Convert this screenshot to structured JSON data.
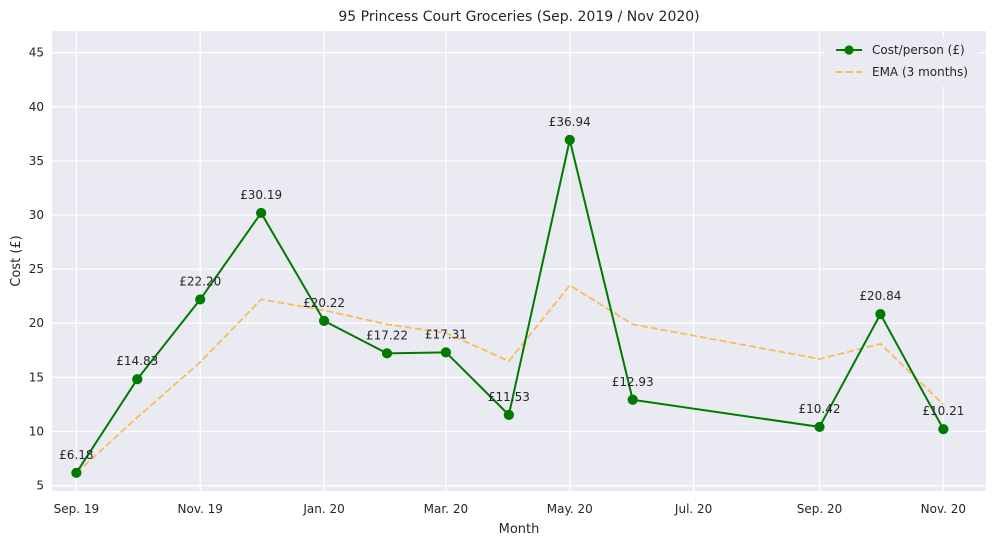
{
  "chart_data": {
    "type": "line",
    "title": "95 Princess Court Groceries (Sep. 2019 / Nov 2020)",
    "xlabel": "Month",
    "ylabel": "Cost (£)",
    "x_ticks": [
      {
        "date": "2019-09",
        "label": "Sep. 19"
      },
      {
        "date": "2019-11",
        "label": "Nov. 19"
      },
      {
        "date": "2020-01",
        "label": "Jan. 20"
      },
      {
        "date": "2020-03",
        "label": "Mar. 20"
      },
      {
        "date": "2020-05",
        "label": "May. 20"
      },
      {
        "date": "2020-07",
        "label": "Jul. 20"
      },
      {
        "date": "2020-09",
        "label": "Sep. 20"
      },
      {
        "date": "2020-11",
        "label": "Nov. 20"
      }
    ],
    "y_ticks": [
      5,
      10,
      15,
      20,
      25,
      30,
      35,
      40,
      45
    ],
    "ylim": [
      4.5,
      47
    ],
    "xlim": [
      "2019-08-20",
      "2020-11-22"
    ],
    "grid": true,
    "legend_position": "top-right",
    "x": [
      "2019-09",
      "2019-10",
      "2019-11",
      "2019-12",
      "2020-01",
      "2020-02",
      "2020-03",
      "2020-04",
      "2020-05",
      "2020-06",
      "2020-09",
      "2020-10",
      "2020-11"
    ],
    "series": [
      {
        "name": "Cost/person (£)",
        "style": "solid-markers",
        "color": "#007a00",
        "values": [
          6.18,
          14.83,
          22.2,
          30.19,
          20.22,
          17.22,
          17.31,
          11.53,
          36.94,
          12.93,
          10.42,
          20.84,
          10.21
        ],
        "labels": [
          "£6.18",
          "£14.83",
          "£22.20",
          "£30.19",
          "£20.22",
          "£17.22",
          "£17.31",
          "£11.53",
          "£36.94",
          "£12.93",
          "£10.42",
          "£20.84",
          "£10.21"
        ]
      },
      {
        "name": "EMA (3 months)",
        "style": "dashed",
        "color": "#f9b847",
        "values": [
          6.18,
          11.3,
          16.4,
          22.2,
          21.2,
          19.9,
          19.1,
          16.5,
          23.5,
          19.9,
          16.7,
          18.1,
          12.5
        ]
      }
    ]
  }
}
